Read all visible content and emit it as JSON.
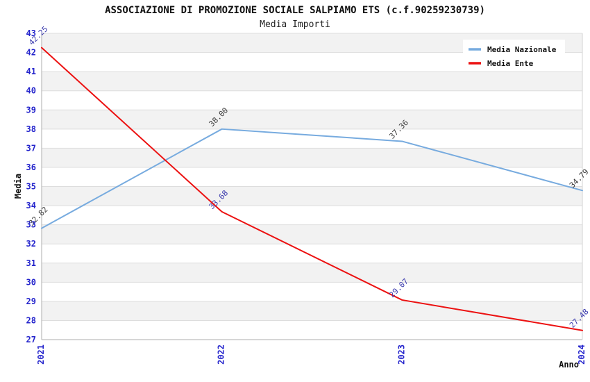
{
  "chart_data": {
    "type": "line",
    "title": "ASSOCIAZIONE DI PROMOZIONE SOCIALE SALPIAMO ETS (c.f.90259230739)",
    "subtitle": "Media Importi",
    "xlabel": "Anno",
    "ylabel": "Media",
    "x_categories": [
      "2021",
      "2022",
      "2023",
      "2024"
    ],
    "ylim": [
      27,
      43
    ],
    "ytick_step": 1,
    "grid": "horizontal-bands-alternating",
    "legend_position": "top-right",
    "colors": {
      "tick_label": "#2424CC",
      "band_gray": "#F2F2F2",
      "gridline": "#DDDDDD",
      "axis_line": "#ADADAD",
      "right_border": "#D3D3D3",
      "legend_background": "#FFFFFF"
    },
    "series": [
      {
        "name": "Media Nazionale",
        "color": "#77ABDF",
        "label_color": "#3C3C3C",
        "values": [
          32.82,
          38.0,
          37.36,
          34.79
        ],
        "point_labels": [
          "32.82",
          "38.00",
          "37.36",
          "34.79"
        ]
      },
      {
        "name": "Media Ente",
        "color": "#EC1111",
        "label_color": "#3A3AAD",
        "values": [
          42.25,
          33.68,
          29.07,
          27.48
        ],
        "point_labels": [
          "42.25",
          "33.68",
          "29.07",
          "27.48"
        ]
      }
    ]
  }
}
